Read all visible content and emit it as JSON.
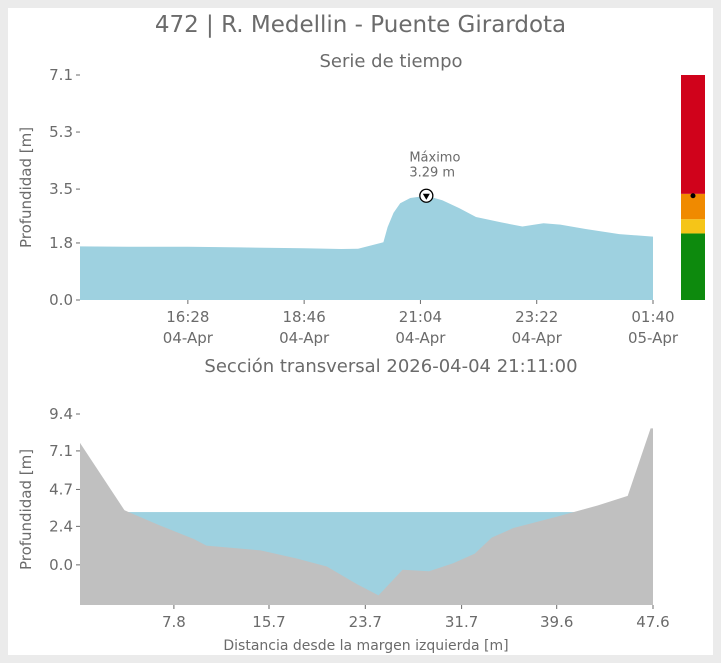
{
  "title": "472 | R. Medellin - Puente Girardota",
  "colors": {
    "water": "#9ed1e0",
    "terrain": "#c0c0c0",
    "text": "#6b6b6b",
    "alert_red": "#d0021b",
    "alert_orange": "#f08a00",
    "alert_yellow": "#f5c518",
    "alert_green": "#0d8a0d"
  },
  "chart_data": [
    {
      "type": "area",
      "title": "Serie de tiempo",
      "xlabel": "",
      "ylabel": "Profundidad [m]",
      "ylim": [
        0.0,
        7.1
      ],
      "yticks": [
        "0.0",
        "1.8",
        "3.5",
        "5.3",
        "7.1"
      ],
      "xticks": [
        {
          "time": "16:28",
          "date": "04-Apr"
        },
        {
          "time": "18:46",
          "date": "04-Apr"
        },
        {
          "time": "21:04",
          "date": "04-Apr"
        },
        {
          "time": "23:22",
          "date": "04-Apr"
        },
        {
          "time": "01:40",
          "date": "05-Apr"
        }
      ],
      "x_start": "2026-04-04 14:20",
      "x_end": "2026-04-05 01:40",
      "series": [
        {
          "points": [
            [
              "2026-04-04 14:20",
              1.69
            ],
            [
              "2026-04-04 15:30",
              1.68
            ],
            [
              "2026-04-04 16:28",
              1.68
            ],
            [
              "2026-04-04 17:30",
              1.66
            ],
            [
              "2026-04-04 18:46",
              1.63
            ],
            [
              "2026-04-04 19:30",
              1.61
            ],
            [
              "2026-04-04 19:50",
              1.62
            ],
            [
              "2026-04-04 20:20",
              1.82
            ],
            [
              "2026-04-04 20:25",
              2.3
            ],
            [
              "2026-04-04 20:32",
              2.75
            ],
            [
              "2026-04-04 20:40",
              3.05
            ],
            [
              "2026-04-04 20:52",
              3.22
            ],
            [
              "2026-04-04 21:11",
              3.29
            ],
            [
              "2026-04-04 21:30",
              3.15
            ],
            [
              "2026-04-04 21:50",
              2.9
            ],
            [
              "2026-04-04 22:10",
              2.62
            ],
            [
              "2026-04-04 22:40",
              2.45
            ],
            [
              "2026-04-04 23:05",
              2.32
            ],
            [
              "2026-04-04 23:30",
              2.42
            ],
            [
              "2026-04-04 23:50",
              2.38
            ],
            [
              "2026-04-05 00:20",
              2.24
            ],
            [
              "2026-04-05 01:00",
              2.08
            ],
            [
              "2026-04-05 01:40",
              2.0
            ]
          ]
        }
      ],
      "annotation": {
        "label": "Máximo",
        "value_label": "3.29 m",
        "time": "2026-04-04 21:11",
        "value": 3.29
      },
      "alert_bar": {
        "ylim": [
          0.0,
          7.1
        ],
        "levels": [
          {
            "from": 0.0,
            "to": 2.1,
            "color": "#0d8a0d"
          },
          {
            "from": 2.1,
            "to": 2.55,
            "color": "#f5c518"
          },
          {
            "from": 2.55,
            "to": 3.35,
            "color": "#f08a00"
          },
          {
            "from": 3.35,
            "to": 7.1,
            "color": "#d0021b"
          }
        ],
        "marker_value": 3.29
      }
    },
    {
      "type": "area",
      "title": "Sección transversal 2026-04-04 21:11:00",
      "xlabel": "Distancia desde la margen izquierda [m]",
      "ylabel": "Profundidad [m]",
      "xlim": [
        0.0,
        47.6
      ],
      "ylim": [
        -2.5,
        9.4
      ],
      "xticks": [
        "7.8",
        "15.7",
        "23.7",
        "31.7",
        "39.6",
        "47.6"
      ],
      "yticks": [
        "0.0",
        "2.4",
        "4.7",
        "7.1",
        "9.4"
      ],
      "water_level": 3.29,
      "terrain": [
        [
          0.0,
          7.6
        ],
        [
          3.7,
          3.4
        ],
        [
          6.5,
          2.5
        ],
        [
          9.5,
          1.6
        ],
        [
          10.5,
          1.2
        ],
        [
          15.0,
          0.9
        ],
        [
          18.0,
          0.4
        ],
        [
          20.5,
          -0.1
        ],
        [
          23.0,
          -1.2
        ],
        [
          24.8,
          -1.9
        ],
        [
          26.8,
          -0.3
        ],
        [
          29.0,
          -0.4
        ],
        [
          31.0,
          0.1
        ],
        [
          32.8,
          0.7
        ],
        [
          34.2,
          1.7
        ],
        [
          36.0,
          2.3
        ],
        [
          39.6,
          3.0
        ],
        [
          43.0,
          3.7
        ],
        [
          45.5,
          4.3
        ],
        [
          47.4,
          8.5
        ],
        [
          47.6,
          8.5
        ]
      ]
    }
  ]
}
